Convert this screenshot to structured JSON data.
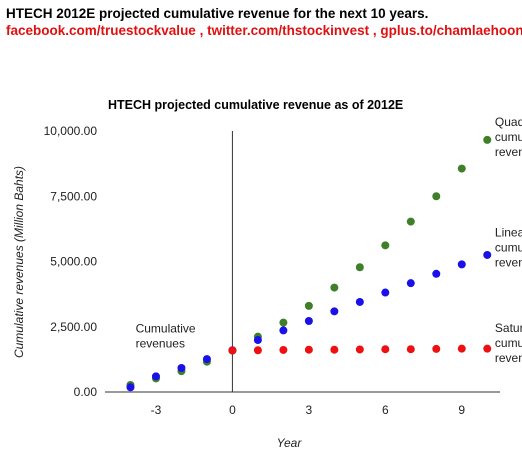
{
  "header": {
    "title": "HTECH 2012E projected cumulative revenue for the next 10 years.",
    "links": "facebook.com/truestockvalue , twitter.com/thstockinvest , gplus.to/chamlaehoon"
  },
  "chart_data": {
    "type": "scatter",
    "title": "HTECH projected cumulative revenue as of 2012E",
    "xlabel": "Year",
    "ylabel": "Cumulative revenues (Million Bahts)",
    "xlim": [
      -5,
      10.5
    ],
    "ylim": [
      0,
      10000
    ],
    "x_ticks": [
      -3,
      0,
      3,
      6,
      9
    ],
    "x_tick_labels": [
      "-3",
      "0",
      "3",
      "6",
      "9"
    ],
    "y_ticks": [
      0,
      2500,
      5000,
      7500,
      10000
    ],
    "y_tick_labels": [
      "0.00",
      "2,500.00",
      "5,000.00",
      "7,500.00",
      "10,000.00"
    ],
    "grid": false,
    "vertical_reference_line_at": 0,
    "series": [
      {
        "name": "Cumulative revenues",
        "color": "#3f7f2a",
        "points": [
          [
            -4,
            270
          ],
          [
            -3,
            520
          ],
          [
            -2,
            800
          ],
          [
            -1,
            1160
          ],
          [
            0,
            1590
          ]
        ]
      },
      {
        "name": "Cumulative revenues",
        "color": "#1a10e8",
        "points": [
          [
            -4,
            180
          ],
          [
            -3,
            600
          ],
          [
            -2,
            920
          ],
          [
            -1,
            1260
          ]
        ]
      },
      {
        "name": "Quadratic cumulative revenues",
        "color": "#3f7f2a",
        "points": [
          [
            1,
            2120
          ],
          [
            2,
            2660
          ],
          [
            3,
            3300
          ],
          [
            4,
            4000
          ],
          [
            5,
            4780
          ],
          [
            6,
            5620
          ],
          [
            7,
            6530
          ],
          [
            8,
            7500
          ],
          [
            9,
            8560
          ],
          [
            10,
            9660
          ]
        ]
      },
      {
        "name": "Linear cumulative revenues",
        "color": "#1a10e8",
        "points": [
          [
            0,
            1600
          ],
          [
            1,
            1990
          ],
          [
            2,
            2360
          ],
          [
            3,
            2720
          ],
          [
            4,
            3090
          ],
          [
            5,
            3450
          ],
          [
            6,
            3810
          ],
          [
            7,
            4170
          ],
          [
            8,
            4530
          ],
          [
            9,
            4890
          ],
          [
            10,
            5250
          ]
        ]
      },
      {
        "name": "Saturated cumulative revenues",
        "color": "#ee1010",
        "points": [
          [
            0,
            1590
          ],
          [
            1,
            1600
          ],
          [
            2,
            1610
          ],
          [
            3,
            1620
          ],
          [
            4,
            1620
          ],
          [
            5,
            1630
          ],
          [
            6,
            1640
          ],
          [
            7,
            1640
          ],
          [
            8,
            1650
          ],
          [
            9,
            1660
          ],
          [
            10,
            1660
          ]
        ]
      }
    ],
    "annotations": [
      {
        "lines": [
          "Quadratic",
          "cumulative",
          "revenues"
        ],
        "at": [
          10.3,
          10200
        ]
      },
      {
        "lines": [
          "Linear",
          "cumulative",
          "revenues"
        ],
        "at": [
          10.3,
          5950
        ]
      },
      {
        "lines": [
          "Saturated",
          "cumulative",
          "revenues"
        ],
        "at": [
          10.3,
          2300
        ]
      },
      {
        "lines": [
          "Cumulative",
          "revenues"
        ],
        "at": [
          -3.8,
          2280
        ]
      }
    ]
  }
}
